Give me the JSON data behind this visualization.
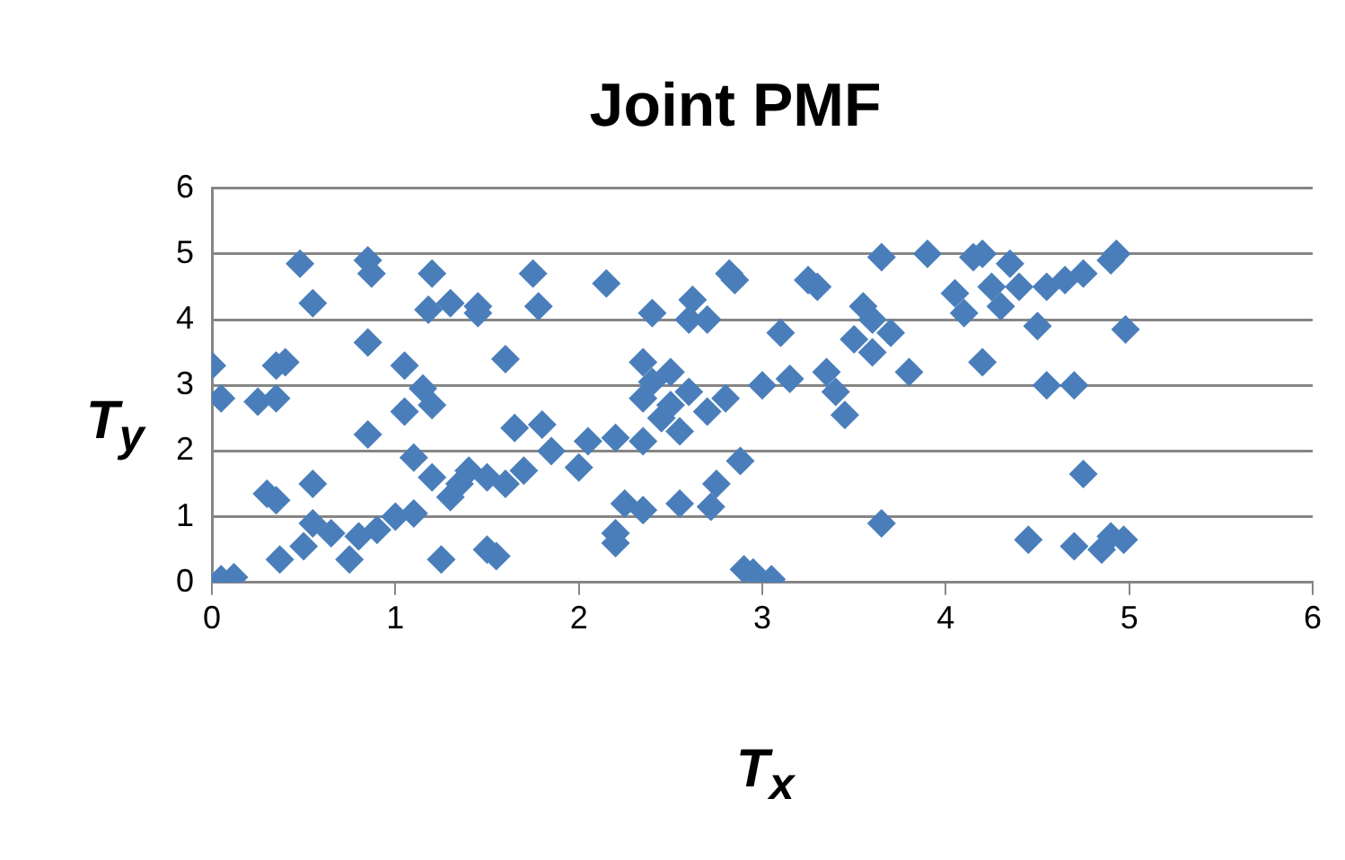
{
  "chart_data": {
    "type": "scatter",
    "title": "Joint PMF",
    "xlabel": "T$_{x}$",
    "ylabel": "T$_{y}$",
    "xlim": [
      0,
      6
    ],
    "xticks": [
      0,
      1,
      2,
      3,
      4,
      5,
      6
    ],
    "ylim": [
      0,
      6
    ],
    "yticks": [
      0,
      1,
      2,
      3,
      4,
      5,
      6
    ],
    "grid": "y",
    "legend": false,
    "marker": "diamond",
    "series": [
      {
        "color": "#4a7ebb",
        "x": [
          0.0,
          0.05,
          0.05,
          0.12,
          0.25,
          0.3,
          0.35,
          0.35,
          0.4,
          0.35,
          0.48,
          0.55,
          0.37,
          0.5,
          0.55,
          0.55,
          0.65,
          0.75,
          0.8,
          0.85,
          0.87,
          0.85,
          0.85,
          0.9,
          1.0,
          1.05,
          1.05,
          1.1,
          1.1,
          1.15,
          1.2,
          1.2,
          1.18,
          1.25,
          1.3,
          1.35,
          1.45,
          1.45,
          1.5,
          1.55,
          1.2,
          1.3,
          1.4,
          1.5,
          1.6,
          1.65,
          1.7,
          1.75,
          1.78,
          1.8,
          1.85,
          1.6,
          2.0,
          2.05,
          2.15,
          2.2,
          2.2,
          2.2,
          2.25,
          2.35,
          2.35,
          2.35,
          2.4,
          2.35,
          2.4,
          2.45,
          2.5,
          2.5,
          2.55,
          2.6,
          2.55,
          2.6,
          2.62,
          2.7,
          2.72,
          2.75,
          2.7,
          2.8,
          2.82,
          2.85,
          2.88,
          2.9,
          2.95,
          3.05,
          3.0,
          3.1,
          3.15,
          3.25,
          3.3,
          3.35,
          3.4,
          3.45,
          3.5,
          3.55,
          3.6,
          3.6,
          3.65,
          3.7,
          3.8,
          3.9,
          3.65,
          4.05,
          4.1,
          4.15,
          4.2,
          4.2,
          4.25,
          4.3,
          4.35,
          4.4,
          4.45,
          4.5,
          4.55,
          4.55,
          4.65,
          4.7,
          4.7,
          4.75,
          4.75,
          4.85,
          4.9,
          4.9,
          4.93,
          4.97,
          4.98
        ],
        "values": [
          3.3,
          2.8,
          0.05,
          0.08,
          2.75,
          1.35,
          3.3,
          1.25,
          3.35,
          2.8,
          4.85,
          4.25,
          0.35,
          0.55,
          1.5,
          0.9,
          0.75,
          0.35,
          0.7,
          4.9,
          4.7,
          3.65,
          2.25,
          0.8,
          1.0,
          2.6,
          3.3,
          1.05,
          1.9,
          2.95,
          2.7,
          4.7,
          4.15,
          0.35,
          4.25,
          1.5,
          4.2,
          4.1,
          0.5,
          0.4,
          1.6,
          1.3,
          1.7,
          1.6,
          1.5,
          2.35,
          1.7,
          4.7,
          4.2,
          2.4,
          2.0,
          3.4,
          1.75,
          2.15,
          4.55,
          2.2,
          0.6,
          0.75,
          1.2,
          1.1,
          2.15,
          3.35,
          4.1,
          2.8,
          3.05,
          2.5,
          2.7,
          3.2,
          2.3,
          2.9,
          1.2,
          4.0,
          4.3,
          4.0,
          1.15,
          1.5,
          2.6,
          2.8,
          4.7,
          4.6,
          1.85,
          0.2,
          0.15,
          0.05,
          3.0,
          3.8,
          3.1,
          4.6,
          4.5,
          3.2,
          2.9,
          2.55,
          3.7,
          4.2,
          4.0,
          3.5,
          4.95,
          3.8,
          3.2,
          5.0,
          0.9,
          4.4,
          4.1,
          4.95,
          5.0,
          3.35,
          4.5,
          4.2,
          4.85,
          4.5,
          0.65,
          3.9,
          3.0,
          4.5,
          4.6,
          0.55,
          3.0,
          1.65,
          4.7,
          0.5,
          4.9,
          0.7,
          5.0,
          0.65,
          3.85
        ]
      }
    ]
  }
}
